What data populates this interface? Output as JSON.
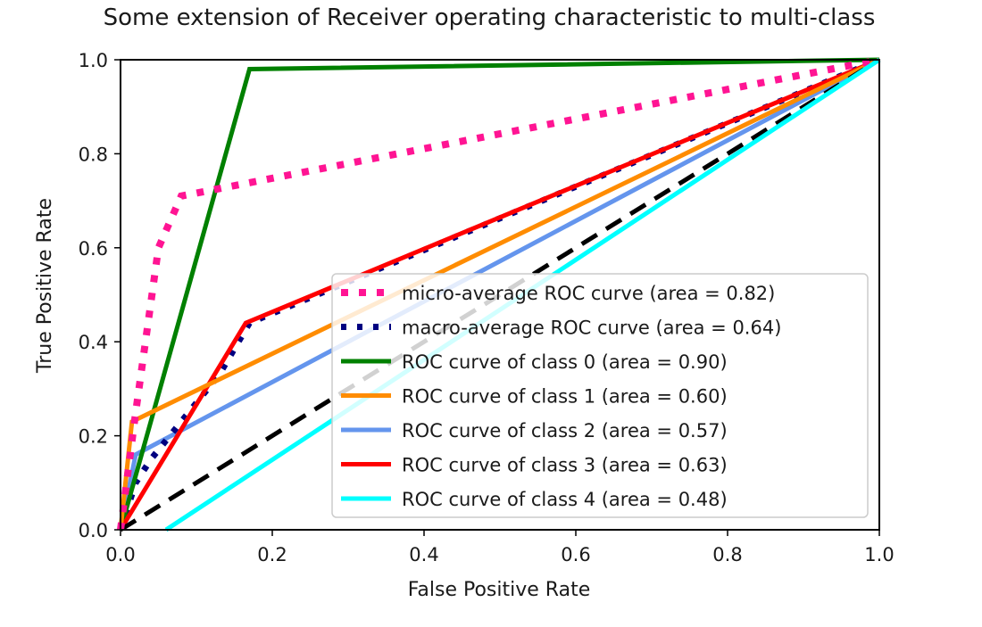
{
  "chart_data": {
    "type": "line",
    "title": "Some extension of Receiver operating characteristic to multi-class",
    "xlabel": "False Positive Rate",
    "ylabel": "True Positive Rate",
    "xlim": [
      0.0,
      1.0
    ],
    "ylim": [
      0.0,
      1.0
    ],
    "xticks": [
      "0.0",
      "0.2",
      "0.4",
      "0.6",
      "0.8",
      "1.0"
    ],
    "yticks": [
      "0.0",
      "0.2",
      "0.4",
      "0.6",
      "0.8",
      "1.0"
    ],
    "grid": false,
    "legend_location": "lower right",
    "series": [
      {
        "name": "micro-average ROC curve (area = 0.82)",
        "color": "#ff1493",
        "style": "dotted-thick",
        "x": [
          0.0,
          0.02,
          0.05,
          0.08,
          1.0
        ],
        "y": [
          0.0,
          0.25,
          0.6,
          0.71,
          1.0
        ]
      },
      {
        "name": "macro-average ROC curve (area = 0.64)",
        "color": "#000080",
        "style": "dotted",
        "x": [
          0.0,
          0.02,
          0.04,
          0.08,
          0.13,
          0.17,
          1.0
        ],
        "y": [
          0.0,
          0.1,
          0.15,
          0.23,
          0.33,
          0.44,
          1.0
        ]
      },
      {
        "name": "ROC curve of class 0 (area = 0.90)",
        "color": "#008000",
        "style": "solid",
        "x": [
          0.0,
          0.17,
          1.0
        ],
        "y": [
          0.0,
          0.98,
          1.0
        ]
      },
      {
        "name": "ROC curve of class 1 (area = 0.60)",
        "color": "#ff8c00",
        "style": "solid",
        "x": [
          0.0,
          0.015,
          1.0
        ],
        "y": [
          0.0,
          0.23,
          1.0
        ]
      },
      {
        "name": "ROC curve of class 2 (area = 0.57)",
        "color": "#6495ed",
        "style": "solid",
        "x": [
          0.0,
          0.02,
          1.0
        ],
        "y": [
          0.0,
          0.16,
          1.0
        ]
      },
      {
        "name": "ROC curve of class 3 (area = 0.63)",
        "color": "#ff0000",
        "style": "solid",
        "x": [
          0.0,
          0.165,
          1.0
        ],
        "y": [
          0.0,
          0.44,
          1.0
        ]
      },
      {
        "name": "ROC curve of class 4 (area = 0.48)",
        "color": "#00ffff",
        "style": "solid",
        "x": [
          0.06,
          1.0
        ],
        "y": [
          0.0,
          1.0
        ]
      }
    ],
    "reference_line": {
      "color": "#000000",
      "style": "dashed",
      "x": [
        0.0,
        1.0
      ],
      "y": [
        0.0,
        1.0
      ]
    }
  }
}
